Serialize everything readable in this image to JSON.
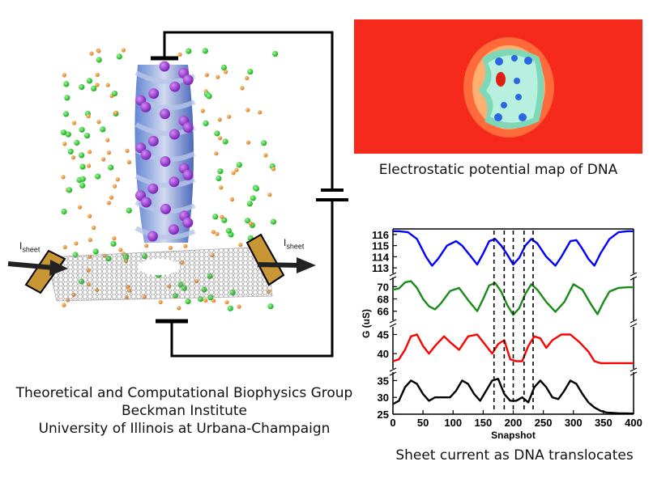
{
  "schematic": {
    "current_label_left": "I",
    "current_label_left_sub": "sheet",
    "current_label_right": "I",
    "current_label_right_sub": "sheet"
  },
  "map": {
    "caption": "Electrostatic potential map of DNA",
    "background_color": "#f52a1c"
  },
  "credits": {
    "line1": "Theoretical and Computational Biophysics Group",
    "line2": "Beckman Institute",
    "line3": "University of Illinois at Urbana-Champaign"
  },
  "plot_caption": "Sheet current as DNA translocates",
  "chart_data": {
    "type": "line",
    "xlabel": "Snapshot",
    "ylabel": "G (uS)",
    "x_ticks": [
      0,
      50,
      100,
      150,
      200,
      250,
      300,
      350,
      400
    ],
    "xlim": [
      0,
      400
    ],
    "markers_x": [
      168,
      185,
      200,
      218,
      233
    ],
    "panels": [
      {
        "color": "#0000ff",
        "ylim": [
          112.5,
          116.5
        ],
        "y_ticks": [
          116,
          115,
          114,
          113
        ],
        "x": [
          0,
          10,
          25,
          40,
          55,
          65,
          75,
          90,
          105,
          115,
          130,
          140,
          150,
          160,
          170,
          180,
          190,
          200,
          210,
          220,
          230,
          240,
          255,
          270,
          280,
          295,
          305,
          315,
          325,
          335,
          345,
          360,
          375,
          390,
          400
        ],
        "y": [
          116.3,
          116.3,
          116.2,
          115.6,
          114.0,
          113.2,
          113.8,
          115.0,
          115.4,
          115.0,
          114.0,
          113.3,
          114.3,
          115.4,
          115.6,
          115.0,
          114.2,
          113.3,
          113.9,
          115.0,
          115.6,
          115.2,
          114.0,
          113.2,
          114.0,
          115.4,
          115.5,
          114.7,
          113.8,
          113.2,
          114.3,
          115.6,
          116.2,
          116.3,
          116.3
        ]
      },
      {
        "color": "#1a8a1a",
        "ylim": [
          64.5,
          71.5
        ],
        "y_ticks": [
          70,
          68,
          66
        ],
        "x": [
          0,
          10,
          20,
          30,
          40,
          50,
          60,
          70,
          80,
          95,
          110,
          125,
          140,
          150,
          160,
          170,
          180,
          190,
          200,
          210,
          220,
          230,
          240,
          255,
          270,
          285,
          300,
          315,
          330,
          340,
          350,
          360,
          375,
          390,
          400
        ],
        "y": [
          69.5,
          69.7,
          70.7,
          70.9,
          69.8,
          68.0,
          66.8,
          66.3,
          67.3,
          69.3,
          69.8,
          67.8,
          66.0,
          68.0,
          70.2,
          70.6,
          69.2,
          67.0,
          65.4,
          66.5,
          68.8,
          70.4,
          69.5,
          67.5,
          65.9,
          67.5,
          70.4,
          69.5,
          67.0,
          65.5,
          67.5,
          69.2,
          69.8,
          69.9,
          69.9
        ]
      },
      {
        "color": "#ff0000",
        "ylim": [
          36,
          47
        ],
        "y_ticks": [
          45,
          40
        ],
        "x": [
          0,
          10,
          20,
          30,
          40,
          50,
          60,
          70,
          85,
          95,
          110,
          125,
          140,
          155,
          165,
          175,
          185,
          195,
          205,
          215,
          225,
          235,
          245,
          255,
          265,
          280,
          295,
          310,
          325,
          335,
          345,
          360,
          380,
          400
        ],
        "y": [
          38,
          38.5,
          41,
          44.5,
          45,
          42,
          40,
          42,
          44.5,
          43,
          41,
          44.5,
          45,
          42,
          40,
          42.5,
          43.5,
          38.5,
          38,
          38,
          42,
          44.5,
          44,
          41.5,
          43.5,
          45,
          45,
          43,
          40.5,
          38,
          37.5,
          37.5,
          37.5,
          37.5
        ]
      },
      {
        "color": "#000000",
        "ylim": [
          25,
          37.5
        ],
        "y_ticks": [
          35,
          30,
          25
        ],
        "x": [
          0,
          10,
          20,
          30,
          40,
          50,
          60,
          70,
          85,
          95,
          105,
          115,
          125,
          135,
          145,
          155,
          165,
          175,
          185,
          195,
          205,
          215,
          225,
          235,
          245,
          255,
          265,
          275,
          285,
          295,
          305,
          315,
          325,
          335,
          345,
          355,
          375,
          400
        ],
        "y": [
          28,
          29,
          33,
          35,
          34,
          31,
          29,
          30,
          30,
          30,
          32,
          35,
          34,
          31,
          29,
          32,
          35,
          35.5,
          31,
          29,
          29,
          30,
          28.5,
          33,
          35,
          33,
          30,
          29.5,
          32,
          35,
          34,
          31,
          28.5,
          27,
          26,
          25.5,
          25.3,
          25.2
        ]
      }
    ]
  }
}
